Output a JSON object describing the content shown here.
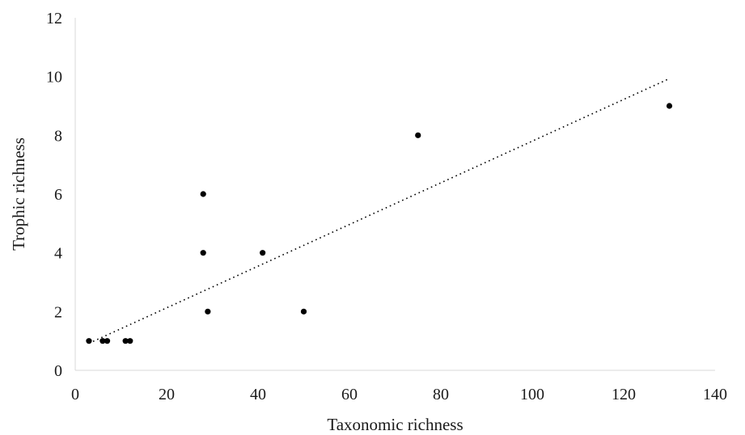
{
  "chart_data": {
    "type": "scatter",
    "title": "",
    "xlabel": "Taxonomic richness",
    "ylabel": "Trophic richness",
    "xlim": [
      0,
      140
    ],
    "ylim": [
      0,
      12
    ],
    "xticks": [
      0,
      20,
      40,
      60,
      80,
      100,
      120,
      140
    ],
    "yticks": [
      0,
      2,
      4,
      6,
      8,
      10,
      12
    ],
    "grid": false,
    "legend": "none",
    "point_color": "#000000",
    "series": [
      {
        "points": [
          {
            "x": 3,
            "y": 1
          },
          {
            "x": 6,
            "y": 1
          },
          {
            "x": 7,
            "y": 1
          },
          {
            "x": 11,
            "y": 1
          },
          {
            "x": 12,
            "y": 1
          },
          {
            "x": 28,
            "y": 6
          },
          {
            "x": 28,
            "y": 4
          },
          {
            "x": 29,
            "y": 2
          },
          {
            "x": 41,
            "y": 4
          },
          {
            "x": 50,
            "y": 2
          },
          {
            "x": 75,
            "y": 8
          },
          {
            "x": 130,
            "y": 9
          }
        ]
      }
    ],
    "trendline": {
      "type": "linear",
      "style": "dotted",
      "x": [
        3,
        130
      ],
      "y": [
        0.92,
        9.93
      ]
    }
  }
}
